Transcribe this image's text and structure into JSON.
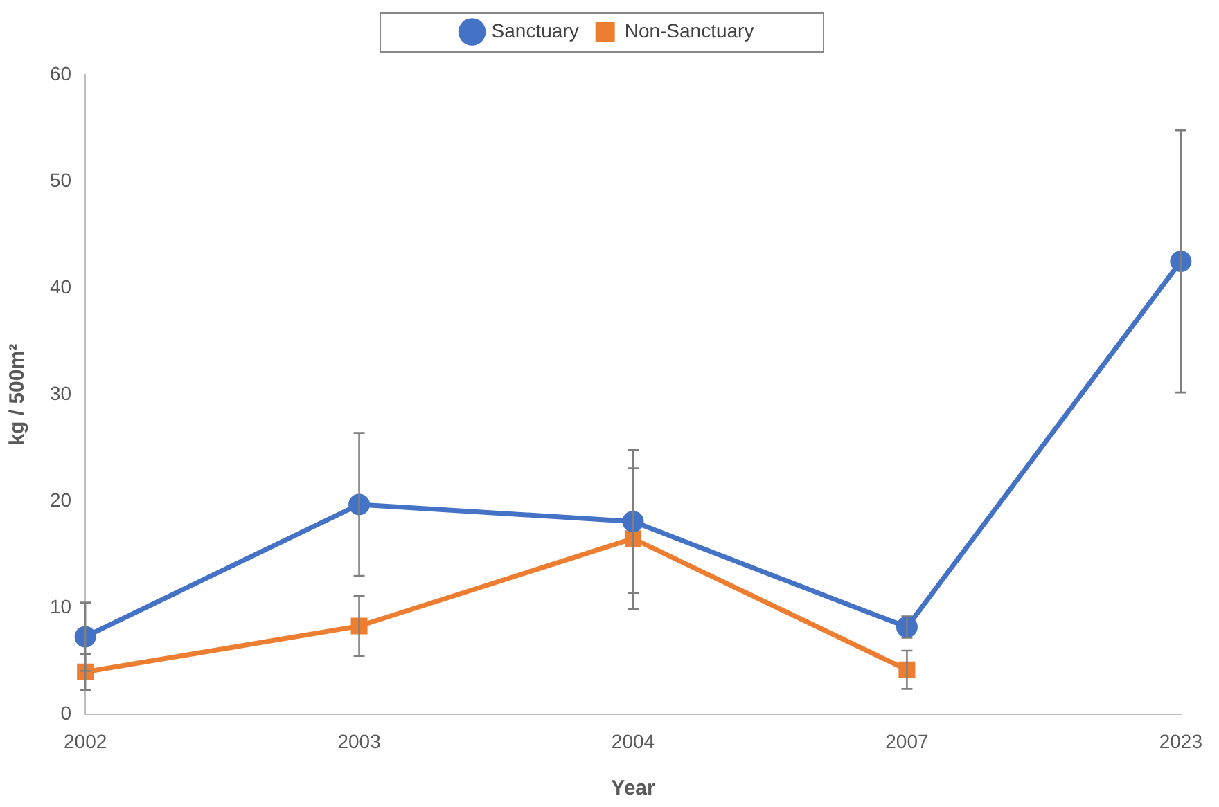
{
  "chart_data": {
    "type": "line",
    "xlabel": "Year",
    "ylabel": "kg / 500m²",
    "categories": [
      "2002",
      "2003",
      "2004",
      "2007",
      "2023"
    ],
    "ylim": [
      0,
      60
    ],
    "yticks": [
      0,
      10,
      20,
      30,
      40,
      50,
      60
    ],
    "grid": false,
    "legend": "top",
    "series": [
      {
        "name": "Sanctuary",
        "color": "#4472c4",
        "marker": "circle",
        "values": [
          7.3,
          19.7,
          18.1,
          8.2,
          42.5
        ],
        "errors": [
          3.2,
          6.7,
          6.7,
          1.0,
          12.3
        ]
      },
      {
        "name": "Non-Sanctuary",
        "color": "#ed7d31",
        "marker": "square",
        "values": [
          4.0,
          8.3,
          16.5,
          4.2,
          null
        ],
        "errors": [
          1.7,
          2.8,
          6.6,
          1.8,
          null
        ]
      }
    ]
  }
}
